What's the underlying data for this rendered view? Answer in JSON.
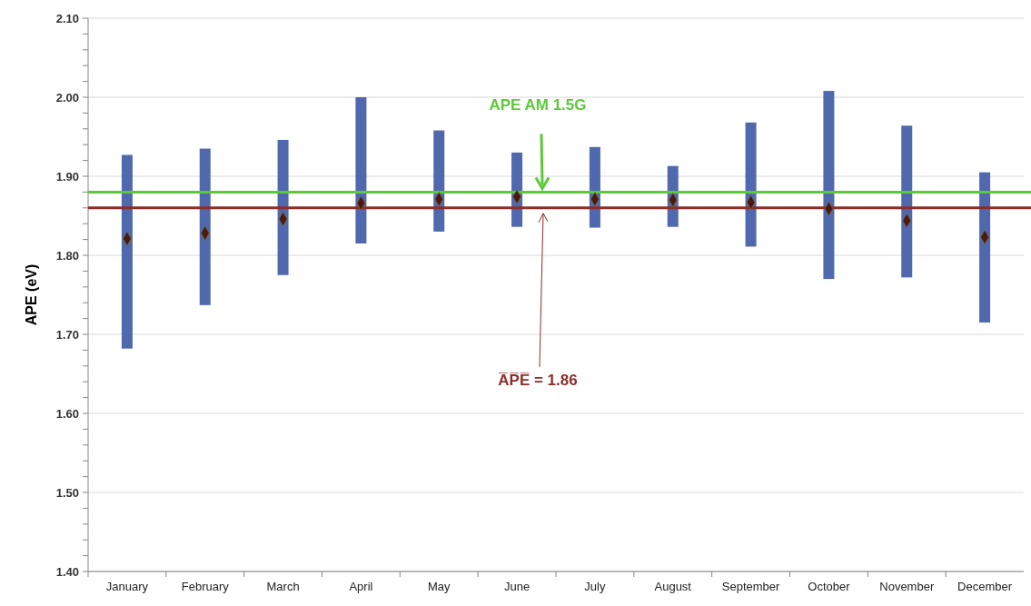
{
  "chart_data": {
    "type": "bar",
    "ylabel": "APE (eV)",
    "categories": [
      "January",
      "February",
      "March",
      "April",
      "May",
      "June",
      "July",
      "August",
      "September",
      "October",
      "November",
      "December"
    ],
    "series": [
      {
        "color": "#5068ad",
        "base": [
          1.682,
          1.737,
          1.775,
          1.815,
          1.83,
          1.836,
          1.835,
          1.836,
          1.811,
          1.77,
          1.772,
          1.715
        ],
        "values": [
          0.245,
          0.198,
          0.171,
          0.185,
          0.128,
          0.094,
          0.102,
          0.077,
          0.157,
          0.238,
          0.192,
          0.19
        ]
      },
      {
        "type": "scatter",
        "color": "#4a1a12",
        "marker": "diamond",
        "x": [
          "January",
          "February",
          "March",
          "April",
          "May",
          "June",
          "July",
          "August",
          "September",
          "October",
          "November",
          "December"
        ],
        "values": [
          1.821,
          1.828,
          1.846,
          1.866,
          1.871,
          1.874,
          1.871,
          1.87,
          1.867,
          1.859,
          1.844,
          1.823
        ]
      }
    ],
    "ylim": [
      1.4,
      2.1
    ],
    "yticks": [
      {
        "value": 1.4,
        "label": "1.40"
      },
      {
        "value": 1.42,
        "label": null
      },
      {
        "value": 1.44,
        "label": null
      },
      {
        "value": 1.46,
        "label": null
      },
      {
        "value": 1.48,
        "label": null
      },
      {
        "value": 1.5,
        "label": "1.50"
      },
      {
        "value": 1.52,
        "label": null
      },
      {
        "value": 1.54,
        "label": null
      },
      {
        "value": 1.56,
        "label": null
      },
      {
        "value": 1.58,
        "label": null
      },
      {
        "value": 1.6,
        "label": "1.60"
      },
      {
        "value": 1.62,
        "label": null
      },
      {
        "value": 1.64,
        "label": null
      },
      {
        "value": 1.66,
        "label": null
      },
      {
        "value": 1.68,
        "label": null
      },
      {
        "value": 1.7,
        "label": "1.70"
      },
      {
        "value": 1.72,
        "label": null
      },
      {
        "value": 1.74,
        "label": null
      },
      {
        "value": 1.76,
        "label": null
      },
      {
        "value": 1.78,
        "label": null
      },
      {
        "value": 1.8,
        "label": "1.80"
      },
      {
        "value": 1.82,
        "label": null
      },
      {
        "value": 1.84,
        "label": null
      },
      {
        "value": 1.86,
        "label": null
      },
      {
        "value": 1.88,
        "label": null
      },
      {
        "value": 1.9,
        "label": "1.90"
      },
      {
        "value": 1.92,
        "label": null
      },
      {
        "value": 1.94,
        "label": null
      },
      {
        "value": 1.96,
        "label": null
      },
      {
        "value": 1.98,
        "label": null
      },
      {
        "value": 2.0,
        "label": "2.00"
      },
      {
        "value": 2.02,
        "label": null
      },
      {
        "value": 2.04,
        "label": null
      },
      {
        "value": 2.06,
        "label": null
      },
      {
        "value": 2.08,
        "label": null
      },
      {
        "value": 2.1,
        "label": "2.10"
      }
    ],
    "grid": "y",
    "ref_lines": [
      {
        "axis": "y",
        "value": 1.88,
        "label": "APE AM 1.5G",
        "color": "#5cc93a"
      },
      {
        "axis": "y",
        "value": 1.86,
        "label": "A̅P̅E̅ = 1.86",
        "color": "#8b2e2a"
      }
    ]
  }
}
